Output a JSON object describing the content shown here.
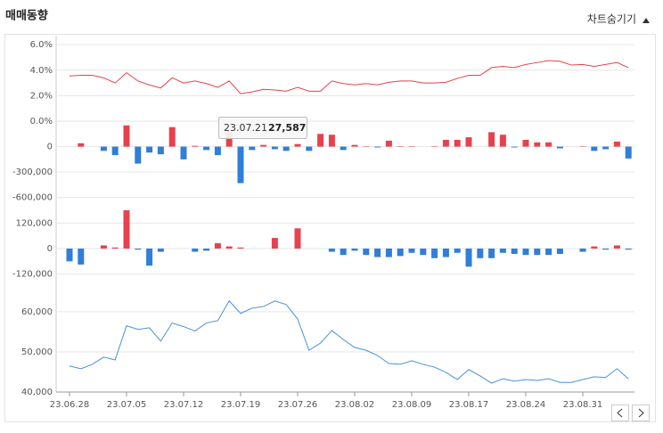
{
  "header": {
    "title": "매매동향",
    "toggle": "차트숨기기"
  },
  "tooltip": {
    "category": "23.07.21",
    "value": 27587,
    "value_label": "27,587"
  },
  "chart_data": [
    {
      "type": "line",
      "color": "#e8414e",
      "ylim": [
        0,
        6.5
      ],
      "yticks": [
        {
          "value": 6,
          "label": "6.0%"
        },
        {
          "value": 4,
          "label": "4.0%"
        },
        {
          "value": 2,
          "label": "2.0%"
        },
        {
          "value": 0,
          "label": "0.0%"
        }
      ],
      "values": [
        3.55,
        3.6,
        3.6,
        3.4,
        3.0,
        3.8,
        3.15,
        2.85,
        2.6,
        3.4,
        3.0,
        3.15,
        2.95,
        2.65,
        3.15,
        2.15,
        2.3,
        2.5,
        2.45,
        2.35,
        2.65,
        2.35,
        2.35,
        3.15,
        2.95,
        2.85,
        2.95,
        2.85,
        3.05,
        3.15,
        3.15,
        3.0,
        3.0,
        3.05,
        3.35,
        3.6,
        3.6,
        4.2,
        4.3,
        4.2,
        4.45,
        4.6,
        4.75,
        4.7,
        4.4,
        4.45,
        4.3,
        4.45,
        4.6,
        4.2
      ]
    },
    {
      "type": "bar",
      "positive_color": "#e8414e",
      "negative_color": "#2f7ed8",
      "ylim": [
        -750000,
        300000
      ],
      "yticks": [
        0,
        {
          "value": -300000,
          "label": "-300,000"
        },
        {
          "value": -600000,
          "label": "-600,000"
        }
      ],
      "values": [
        0,
        40000,
        0,
        -50000,
        -100000,
        250000,
        -200000,
        -70000,
        -90000,
        230000,
        -150000,
        10000,
        -40000,
        -100000,
        180000,
        -430000,
        -40000,
        20000,
        -30000,
        -50000,
        30000,
        -50000,
        150000,
        140000,
        -40000,
        20000,
        5000,
        -10000,
        70000,
        5000,
        5000,
        0,
        5000,
        80000,
        80000,
        110000,
        0,
        170000,
        140000,
        -10000,
        80000,
        50000,
        50000,
        -20000,
        0,
        5000,
        -50000,
        -30000,
        60000,
        -140000
      ]
    },
    {
      "type": "bar",
      "positive_color": "#e8414e",
      "negative_color": "#2f7ed8",
      "ylim": [
        -180000,
        180000
      ],
      "yticks": [
        {
          "value": 120000,
          "label": "120,000"
        },
        0,
        {
          "value": -120000,
          "label": "-120,000"
        }
      ],
      "values": [
        -60000,
        -75000,
        0,
        15000,
        5000,
        180000,
        -5000,
        -80000,
        -15000,
        0,
        0,
        -15000,
        -10000,
        25000,
        10000,
        5000,
        0,
        0,
        50000,
        0,
        95000,
        0,
        0,
        -15000,
        -30000,
        -10000,
        -30000,
        -40000,
        -40000,
        -35000,
        -20000,
        -30000,
        -45000,
        -40000,
        -20000,
        -85000,
        -45000,
        -45000,
        -20000,
        -25000,
        -30000,
        -30000,
        -30000,
        -25000,
        0,
        -15000,
        10000,
        -5000,
        15000,
        -5000
      ]
    },
    {
      "type": "line",
      "color": "#4a90d9",
      "ylim": [
        40000,
        66200
      ],
      "yticks": [
        {
          "value": 60000,
          "label": "60,000"
        },
        {
          "value": 50000,
          "label": "50,000"
        },
        {
          "value": 40000,
          "label": "40,000"
        }
      ],
      "categories": [
        "23.06.28",
        null,
        null,
        null,
        null,
        "23.07.05",
        null,
        null,
        null,
        null,
        "23.07.12",
        null,
        null,
        null,
        null,
        "23.07.19",
        null,
        null,
        null,
        null,
        "23.07.26",
        null,
        null,
        null,
        null,
        "23.08.02",
        null,
        null,
        null,
        null,
        "23.08.09",
        null,
        null,
        null,
        null,
        "23.08.17",
        null,
        null,
        null,
        null,
        "23.08.24",
        null,
        null,
        null,
        null,
        "23.08.31",
        null,
        null,
        null,
        null
      ],
      "values": [
        46500,
        45800,
        46900,
        48700,
        48000,
        56500,
        55600,
        56000,
        52700,
        57200,
        56300,
        55200,
        57200,
        57800,
        62700,
        59600,
        60900,
        61300,
        62700,
        61800,
        58200,
        50400,
        52200,
        55300,
        53100,
        51100,
        50400,
        49100,
        47100,
        46900,
        47800,
        46900,
        46200,
        44900,
        43100,
        45600,
        44000,
        42200,
        43300,
        42700,
        43100,
        42900,
        43300,
        42400,
        42400,
        43100,
        43800,
        43600,
        45800,
        43300
      ]
    }
  ]
}
